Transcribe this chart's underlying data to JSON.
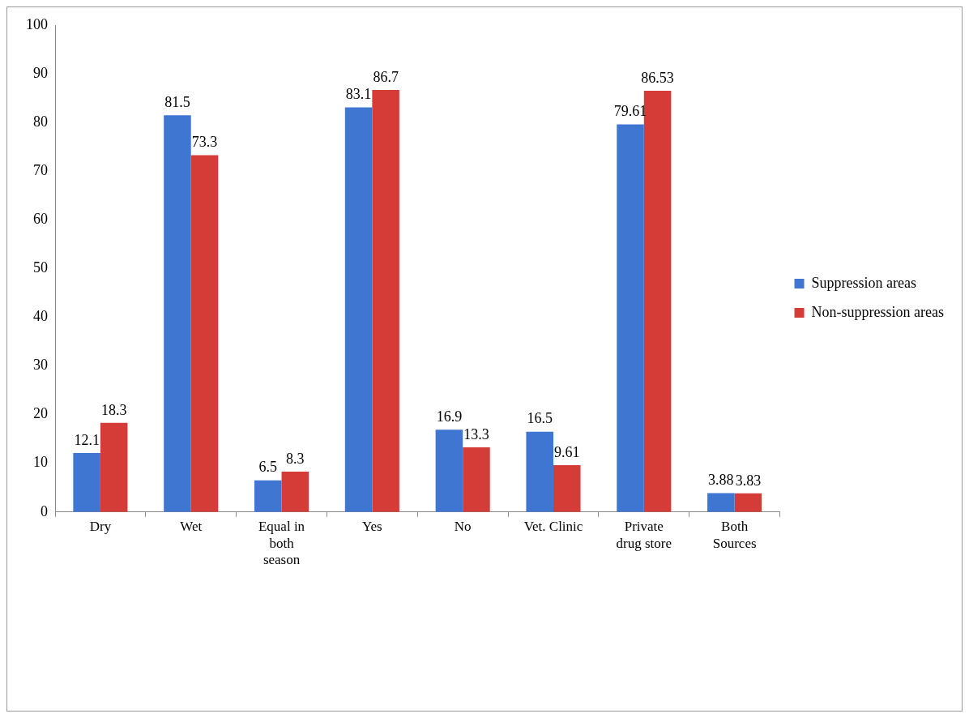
{
  "chart_data": {
    "type": "bar",
    "categories": [
      "Dry",
      "Wet",
      "Equal in both season",
      "Yes",
      "No",
      "Vet. Clinic",
      "Private drug store",
      "Both Sources"
    ],
    "series": [
      {
        "name": "Suppression areas",
        "color": "#3f76d2",
        "values": [
          12.1,
          81.5,
          6.5,
          83.1,
          16.9,
          16.5,
          79.61,
          3.88
        ]
      },
      {
        "name": "Non-suppression areas",
        "color": "#d53c38",
        "values": [
          18.3,
          73.3,
          8.3,
          86.7,
          13.3,
          9.61,
          86.53,
          3.83
        ]
      }
    ],
    "ylim": [
      0,
      100
    ],
    "yticks": [
      0,
      10,
      20,
      30,
      40,
      50,
      60,
      70,
      80,
      90,
      100
    ],
    "grid": false,
    "legend": "right",
    "data_labels": true
  }
}
